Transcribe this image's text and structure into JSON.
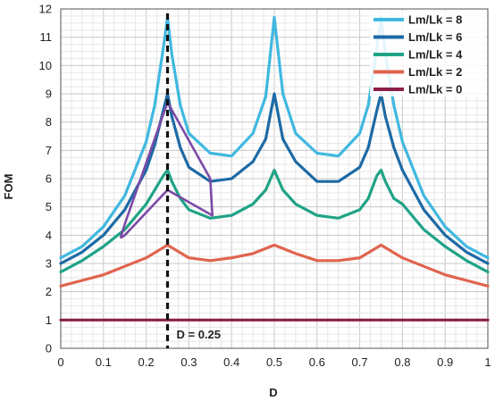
{
  "chart_data": {
    "type": "line",
    "xlabel": "D",
    "ylabel": "FOM",
    "xlim": [
      0,
      1
    ],
    "ylim": [
      0,
      12
    ],
    "xticks": [
      "0",
      "0.1",
      "0.2",
      "0.3",
      "0.4",
      "0.5",
      "0.6",
      "0.7",
      "0.8",
      "0.9",
      "1"
    ],
    "yticks": [
      "0",
      "1",
      "2",
      "3",
      "4",
      "5",
      "6",
      "7",
      "8",
      "9",
      "10",
      "11",
      "12"
    ],
    "grid": true,
    "legend_position": "top-right",
    "series": [
      {
        "name": "Lm/Lk = 8",
        "color": "#3fb8e0",
        "x": [
          0,
          0.05,
          0.1,
          0.15,
          0.2,
          0.22,
          0.24,
          0.25,
          0.26,
          0.28,
          0.3,
          0.35,
          0.4,
          0.45,
          0.48,
          0.5,
          0.52,
          0.55,
          0.6,
          0.65,
          0.7,
          0.72,
          0.74,
          0.75,
          0.76,
          0.78,
          0.8,
          0.85,
          0.9,
          0.95,
          1
        ],
        "y": [
          3.2,
          3.6,
          4.3,
          5.4,
          7.3,
          8.6,
          10.6,
          11.7,
          10.4,
          8.6,
          7.6,
          6.9,
          6.8,
          7.6,
          8.9,
          11.7,
          9.0,
          7.6,
          6.9,
          6.8,
          7.6,
          8.6,
          10.6,
          11.7,
          10.4,
          8.6,
          7.3,
          5.4,
          4.3,
          3.6,
          3.2
        ]
      },
      {
        "name": "Lm/Lk = 6",
        "color": "#1d6aa5",
        "x": [
          0,
          0.05,
          0.1,
          0.15,
          0.2,
          0.22,
          0.24,
          0.25,
          0.26,
          0.28,
          0.3,
          0.35,
          0.4,
          0.45,
          0.48,
          0.5,
          0.52,
          0.55,
          0.6,
          0.65,
          0.7,
          0.72,
          0.74,
          0.75,
          0.76,
          0.78,
          0.8,
          0.85,
          0.9,
          0.95,
          1
        ],
        "y": [
          3.0,
          3.4,
          4.0,
          4.9,
          6.3,
          7.2,
          8.4,
          9.0,
          8.2,
          7.1,
          6.4,
          5.9,
          6.0,
          6.6,
          7.4,
          9.0,
          7.4,
          6.6,
          5.9,
          5.9,
          6.4,
          7.1,
          8.4,
          9.0,
          8.2,
          7.1,
          6.3,
          4.9,
          4.0,
          3.4,
          3.0
        ]
      },
      {
        "name": "Lm/Lk = 4",
        "color": "#1fa386",
        "x": [
          0,
          0.05,
          0.1,
          0.15,
          0.2,
          0.22,
          0.24,
          0.25,
          0.26,
          0.28,
          0.3,
          0.35,
          0.4,
          0.45,
          0.48,
          0.5,
          0.52,
          0.55,
          0.6,
          0.65,
          0.7,
          0.72,
          0.74,
          0.75,
          0.76,
          0.78,
          0.8,
          0.85,
          0.9,
          0.95,
          1
        ],
        "y": [
          2.7,
          3.1,
          3.6,
          4.2,
          5.1,
          5.6,
          6.1,
          6.3,
          5.9,
          5.3,
          4.9,
          4.6,
          4.7,
          5.1,
          5.6,
          6.3,
          5.6,
          5.1,
          4.7,
          4.6,
          4.9,
          5.3,
          6.1,
          6.3,
          5.9,
          5.3,
          5.1,
          4.2,
          3.6,
          3.1,
          2.7
        ]
      },
      {
        "name": "Lm/Lk = 2",
        "color": "#e0644e",
        "x": [
          0,
          0.05,
          0.1,
          0.15,
          0.2,
          0.25,
          0.3,
          0.35,
          0.4,
          0.45,
          0.5,
          0.55,
          0.6,
          0.65,
          0.7,
          0.75,
          0.8,
          0.85,
          0.9,
          0.95,
          1
        ],
        "y": [
          2.2,
          2.4,
          2.6,
          2.9,
          3.2,
          3.65,
          3.2,
          3.1,
          3.2,
          3.35,
          3.65,
          3.35,
          3.1,
          3.1,
          3.2,
          3.65,
          3.2,
          2.9,
          2.6,
          2.4,
          2.2
        ]
      },
      {
        "name": "Lm/Lk = 0",
        "color": "#8b1f49",
        "x": [
          0,
          1
        ],
        "y": [
          1,
          1
        ]
      }
    ],
    "boundary": {
      "color": "#7b4aa6",
      "x": [
        0.14,
        0.15,
        0.25,
        0.35,
        0.355,
        0.25,
        0.15,
        0.14
      ],
      "y": [
        3.9,
        4.4,
        8.7,
        6.0,
        4.7,
        5.6,
        4.0,
        3.9
      ]
    },
    "marker": {
      "x": 0.25,
      "label": "D = 0.25"
    }
  }
}
